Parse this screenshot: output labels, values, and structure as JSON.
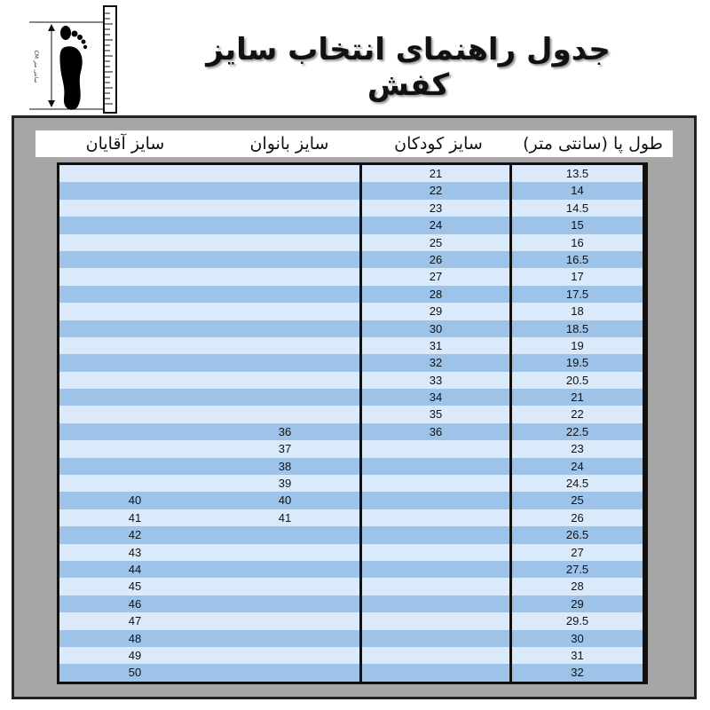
{
  "title": "جدول راهنمای انتخاب سایز کفش",
  "foot_graphic": {
    "label": "CM سانتی متر"
  },
  "colors": {
    "row_light": "#dbeafb",
    "row_dark": "#9dc3e9",
    "frame": "#a6a6a6"
  },
  "columns": [
    "طول پا (سانتی متر)",
    "سایز کودکان",
    "سایز بانوان",
    "سایز آقایان"
  ],
  "rows": [
    [
      "13.5",
      "21",
      "",
      ""
    ],
    [
      "14",
      "22",
      "",
      ""
    ],
    [
      "14.5",
      "23",
      "",
      ""
    ],
    [
      "15",
      "24",
      "",
      ""
    ],
    [
      "16",
      "25",
      "",
      ""
    ],
    [
      "16.5",
      "26",
      "",
      ""
    ],
    [
      "17",
      "27",
      "",
      ""
    ],
    [
      "17.5",
      "28",
      "",
      ""
    ],
    [
      "18",
      "29",
      "",
      ""
    ],
    [
      "18.5",
      "30",
      "",
      ""
    ],
    [
      "19",
      "31",
      "",
      ""
    ],
    [
      "19.5",
      "32",
      "",
      ""
    ],
    [
      "20.5",
      "33",
      "",
      ""
    ],
    [
      "21",
      "34",
      "",
      ""
    ],
    [
      "22",
      "35",
      "",
      ""
    ],
    [
      "22.5",
      "36",
      "36",
      ""
    ],
    [
      "23",
      "",
      "37",
      ""
    ],
    [
      "24",
      "",
      "38",
      ""
    ],
    [
      "24.5",
      "",
      "39",
      ""
    ],
    [
      "25",
      "",
      "40",
      "40"
    ],
    [
      "26",
      "",
      "41",
      "41"
    ],
    [
      "26.5",
      "",
      "",
      "42"
    ],
    [
      "27",
      "",
      "",
      "43"
    ],
    [
      "27.5",
      "",
      "",
      "44"
    ],
    [
      "28",
      "",
      "",
      "45"
    ],
    [
      "29",
      "",
      "",
      "46"
    ],
    [
      "29.5",
      "",
      "",
      "47"
    ],
    [
      "30",
      "",
      "",
      "48"
    ],
    [
      "31",
      "",
      "",
      "49"
    ],
    [
      "32",
      "",
      "",
      "50"
    ]
  ]
}
